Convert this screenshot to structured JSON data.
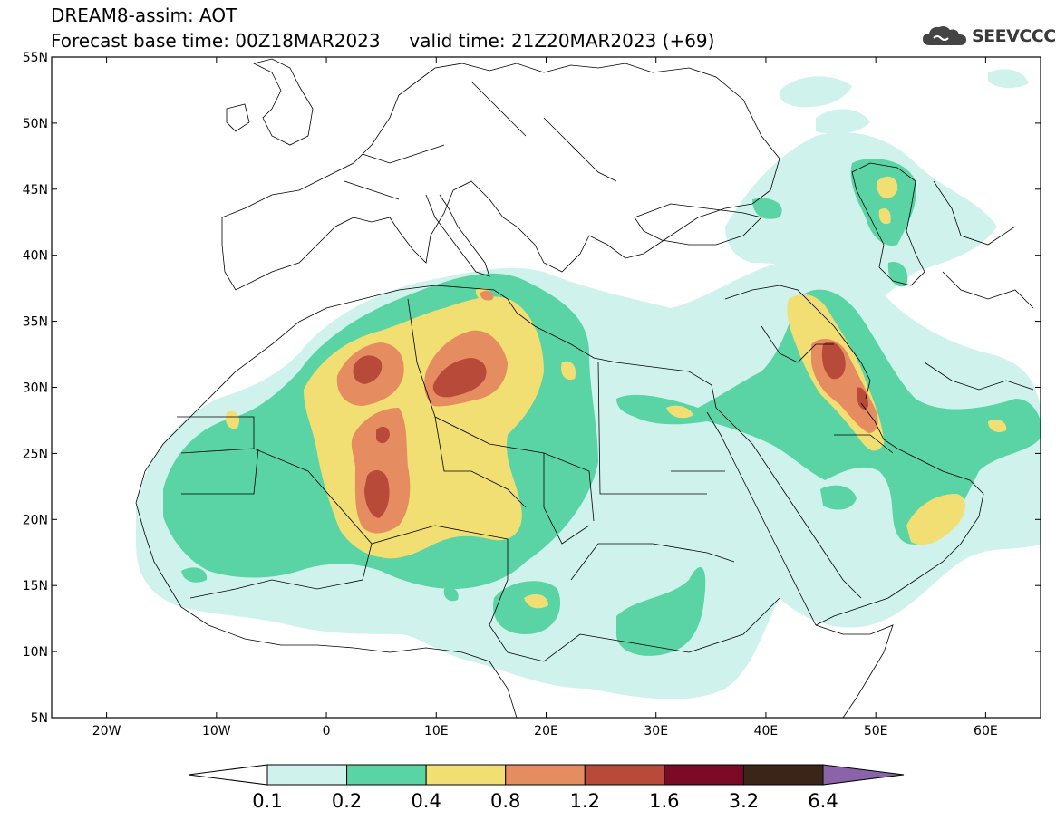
{
  "header": {
    "title_line1": "DREAM8-assim: AOT",
    "title_line2": "Forecast base time: 00Z18MAR2023     valid time: 21Z20MAR2023 (+69)",
    "logo_text": "SEEVCCC"
  },
  "map": {
    "lat_labels": [
      "55N",
      "50N",
      "45N",
      "40N",
      "35N",
      "30N",
      "25N",
      "20N",
      "15N",
      "10N",
      "5N"
    ],
    "lon_labels": [
      "20W",
      "10W",
      "0",
      "10E",
      "20E",
      "30E",
      "40E",
      "50E",
      "60E"
    ],
    "extent": {
      "lon_min": -25,
      "lon_max": 65,
      "lat_min": 5,
      "lat_max": 55
    }
  },
  "colorbar": {
    "levels": [
      "0.1",
      "0.2",
      "0.4",
      "0.8",
      "1.2",
      "1.6",
      "3.2",
      "6.4"
    ],
    "colors": {
      "below": "#ffffff",
      "c1": "#cff3ec",
      "c2": "#5ad4a4",
      "c3": "#f2df73",
      "c4": "#e58c60",
      "c5": "#b84a3a",
      "c6": "#7a0a26",
      "c7": "#3b2418",
      "above": "#8a63a8"
    }
  }
}
